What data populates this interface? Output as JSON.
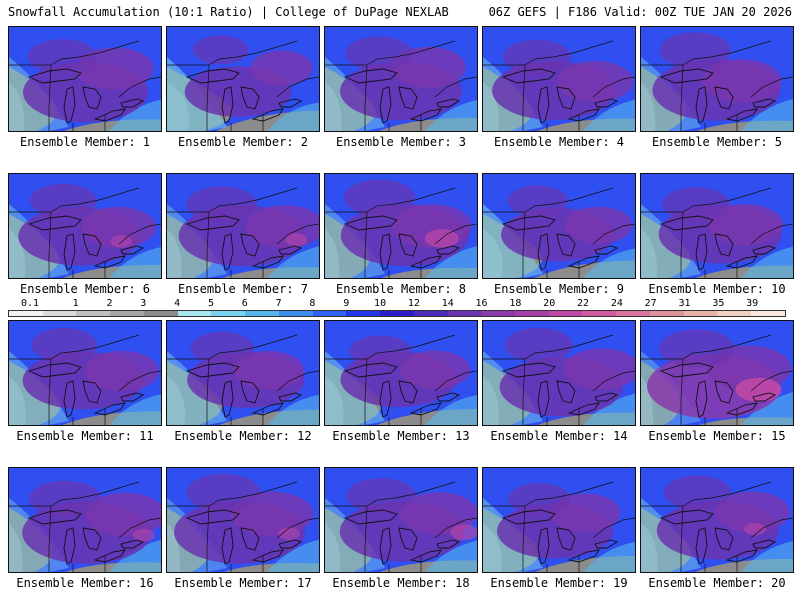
{
  "header": {
    "title_left": "Snowfall Accumulation (10:1 Ratio) | College of DuPage NEXLAB",
    "title_right": "06Z GEFS | F186 Valid: 00Z TUE JAN 20 2026"
  },
  "colorbar": {
    "labels": [
      "0.1",
      "1",
      "2",
      "3",
      "4",
      "5",
      "6",
      "7",
      "8",
      "9",
      "10",
      "12",
      "14",
      "16",
      "18",
      "20",
      "22",
      "24",
      "27",
      "31",
      "35",
      "39"
    ],
    "colors": [
      "#f2f2f2",
      "#d9d9d9",
      "#bfbfbf",
      "#a6a6a6",
      "#8c8c8c",
      "#a8e6f0",
      "#7ad3ee",
      "#55b7ee",
      "#3e8ef0",
      "#2f64f2",
      "#2336ea",
      "#2a1fc8",
      "#4a2cb8",
      "#6a34b0",
      "#8a3aac",
      "#a640a8",
      "#bf48a6",
      "#d25aa0",
      "#d8749c",
      "#e0929c",
      "#e8b2a8",
      "#f0d0c0",
      "#f8e8de"
    ]
  },
  "panels": [
    {
      "caption": "Ensemble Member: 1",
      "intensity": 0.75,
      "warm": 0.0
    },
    {
      "caption": "Ensemble Member: 2",
      "intensity": 0.45,
      "warm": 0.0
    },
    {
      "caption": "Ensemble Member: 3",
      "intensity": 0.7,
      "warm": 0.0
    },
    {
      "caption": "Ensemble Member: 4",
      "intensity": 0.72,
      "warm": 0.0
    },
    {
      "caption": "Ensemble Member: 5",
      "intensity": 0.8,
      "warm": 0.0
    },
    {
      "caption": "Ensemble Member: 6",
      "intensity": 0.7,
      "warm": 0.1
    },
    {
      "caption": "Ensemble Member: 7",
      "intensity": 0.78,
      "warm": 0.1
    },
    {
      "caption": "Ensemble Member: 8",
      "intensity": 0.8,
      "warm": 0.3
    },
    {
      "caption": "Ensemble Member: 9",
      "intensity": 0.55,
      "warm": 0.0
    },
    {
      "caption": "Ensemble Member: 10",
      "intensity": 0.72,
      "warm": 0.0
    },
    {
      "caption": "Ensemble Member: 11",
      "intensity": 0.68,
      "warm": 0.0
    },
    {
      "caption": "Ensemble Member: 12",
      "intensity": 0.62,
      "warm": 0.0
    },
    {
      "caption": "Ensemble Member: 13",
      "intensity": 0.6,
      "warm": 0.0
    },
    {
      "caption": "Ensemble Member: 14",
      "intensity": 0.72,
      "warm": 0.0
    },
    {
      "caption": "Ensemble Member: 15",
      "intensity": 0.9,
      "warm": 0.5
    },
    {
      "caption": "Ensemble Member: 16",
      "intensity": 0.82,
      "warm": 0.1
    },
    {
      "caption": "Ensemble Member: 17",
      "intensity": 0.85,
      "warm": 0.1
    },
    {
      "caption": "Ensemble Member: 18",
      "intensity": 0.75,
      "warm": 0.2
    },
    {
      "caption": "Ensemble Member: 19",
      "intensity": 0.6,
      "warm": 0.0
    },
    {
      "caption": "Ensemble Member: 20",
      "intensity": 0.7,
      "warm": 0.1
    }
  ]
}
